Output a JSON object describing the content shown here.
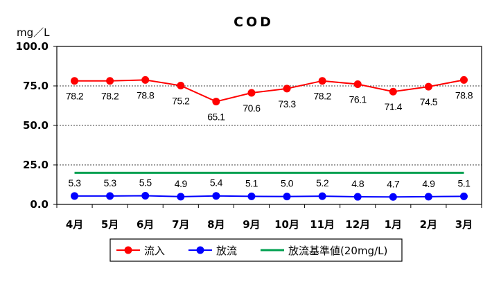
{
  "chart_data": {
    "type": "line",
    "title": "COD",
    "ylabel": "mg/L",
    "ylabel_display": "mg／L",
    "ylim": [
      0,
      100
    ],
    "yticks": [
      "0.0",
      "25.0",
      "50.0",
      "75.0",
      "100.0"
    ],
    "categories": [
      "4月",
      "5月",
      "6月",
      "7月",
      "8月",
      "9月",
      "10月",
      "11月",
      "12月",
      "1月",
      "2月",
      "3月"
    ],
    "series": [
      {
        "name": "流入",
        "color": "#ff0000",
        "values": [
          78.2,
          78.2,
          78.8,
          75.2,
          65.1,
          70.6,
          73.3,
          78.2,
          76.1,
          71.4,
          74.5,
          78.8
        ],
        "labels": [
          "78.2",
          "78.2",
          "78.8",
          "75.2",
          "65.1",
          "70.6",
          "73.3",
          "78.2",
          "76.1",
          "71.4",
          "74.5",
          "78.8"
        ]
      },
      {
        "name": "放流",
        "color": "#0000ff",
        "values": [
          5.3,
          5.3,
          5.5,
          4.9,
          5.4,
          5.1,
          5.0,
          5.2,
          4.8,
          4.7,
          4.9,
          5.1
        ],
        "labels": [
          "5.3",
          "5.3",
          "5.5",
          "4.9",
          "5.4",
          "5.1",
          "5.0",
          "5.2",
          "4.8",
          "4.7",
          "4.9",
          "5.1"
        ]
      },
      {
        "name": "放流基準値(20mg/L)",
        "color": "#00a050",
        "values": [
          20,
          20,
          20,
          20,
          20,
          20,
          20,
          20,
          20,
          20,
          20,
          20
        ]
      }
    ],
    "grid": true,
    "legend_position": "bottom"
  }
}
